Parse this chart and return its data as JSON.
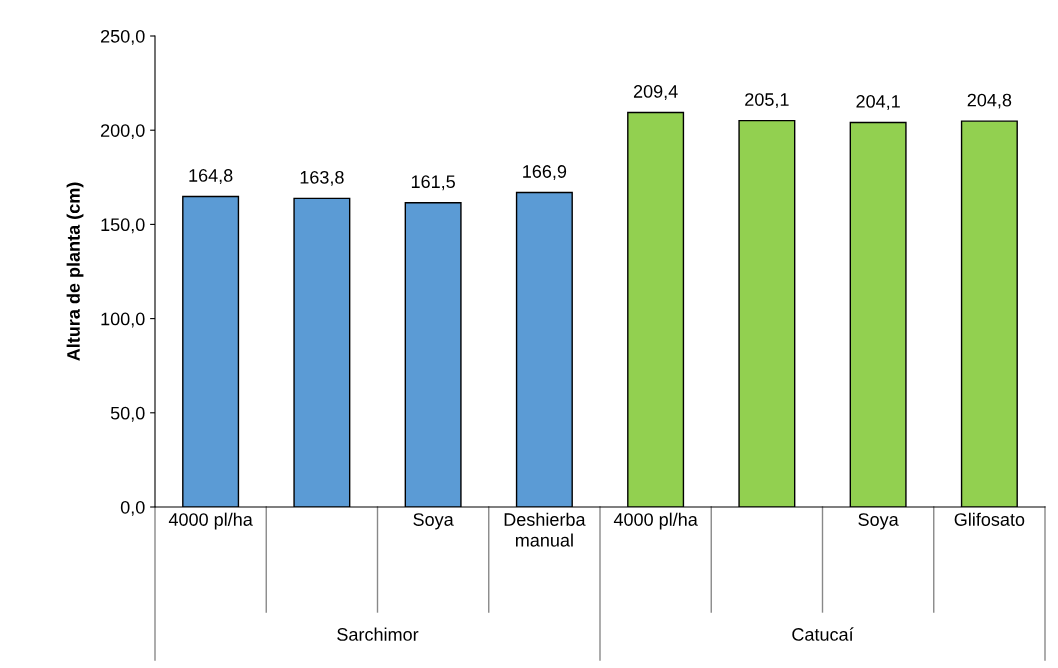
{
  "chart_data": {
    "type": "bar",
    "ylabel": "Altura de planta (cm)",
    "categories": [
      "4000 pl/ha",
      null,
      "Soya",
      "Deshierba manual",
      "4000 pl/ha",
      null,
      "Soya",
      "Glifosato"
    ],
    "values": [
      164.8,
      163.8,
      161.5,
      166.9,
      209.4,
      205.1,
      204.1,
      204.8
    ],
    "value_labels": [
      "164,8",
      "163,8",
      "161,5",
      "166,9",
      "209,4",
      "205,1",
      "204,1",
      "204,8"
    ],
    "colors": [
      "#5b9bd5",
      "#5b9bd5",
      "#5b9bd5",
      "#5b9bd5",
      "#92d050",
      "#92d050",
      "#92d050",
      "#92d050"
    ],
    "ylim": [
      0,
      250
    ],
    "yticks": [
      {
        "value": 0,
        "label": "0,0"
      },
      {
        "value": 50,
        "label": "50,0"
      },
      {
        "value": 100,
        "label": "100,0"
      },
      {
        "value": 150,
        "label": "150,0"
      },
      {
        "value": 200,
        "label": "200,0"
      },
      {
        "value": 250,
        "label": "250,0"
      }
    ],
    "annotations": [
      "Sarchimor",
      "Catucaí"
    ],
    "grid": false
  }
}
